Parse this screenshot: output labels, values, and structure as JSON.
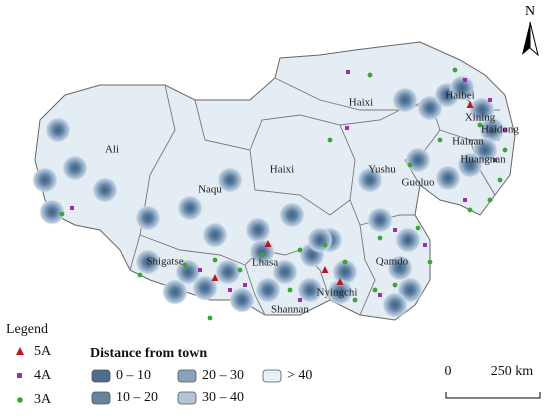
{
  "map": {
    "north": "N",
    "regions": [
      "Ali",
      "Naqu",
      "Haixi",
      "Haixi",
      "Yushu",
      "Haibei",
      "Xining",
      "Haidong",
      "Hainan",
      "Huangnan",
      "Guoluo",
      "Shigatse",
      "Lhasa",
      "Qamdo",
      "Nyingchi",
      "Shannan"
    ],
    "legend": {
      "title": "Legend",
      "points": [
        "5A",
        "4A",
        "3A"
      ],
      "distance_title": "Distance from town",
      "classes": [
        "0 – 10",
        "10 – 20",
        "20 – 30",
        "30 – 40",
        "> 40"
      ]
    },
    "scale": {
      "start": "0",
      "end": "250 km"
    }
  }
}
